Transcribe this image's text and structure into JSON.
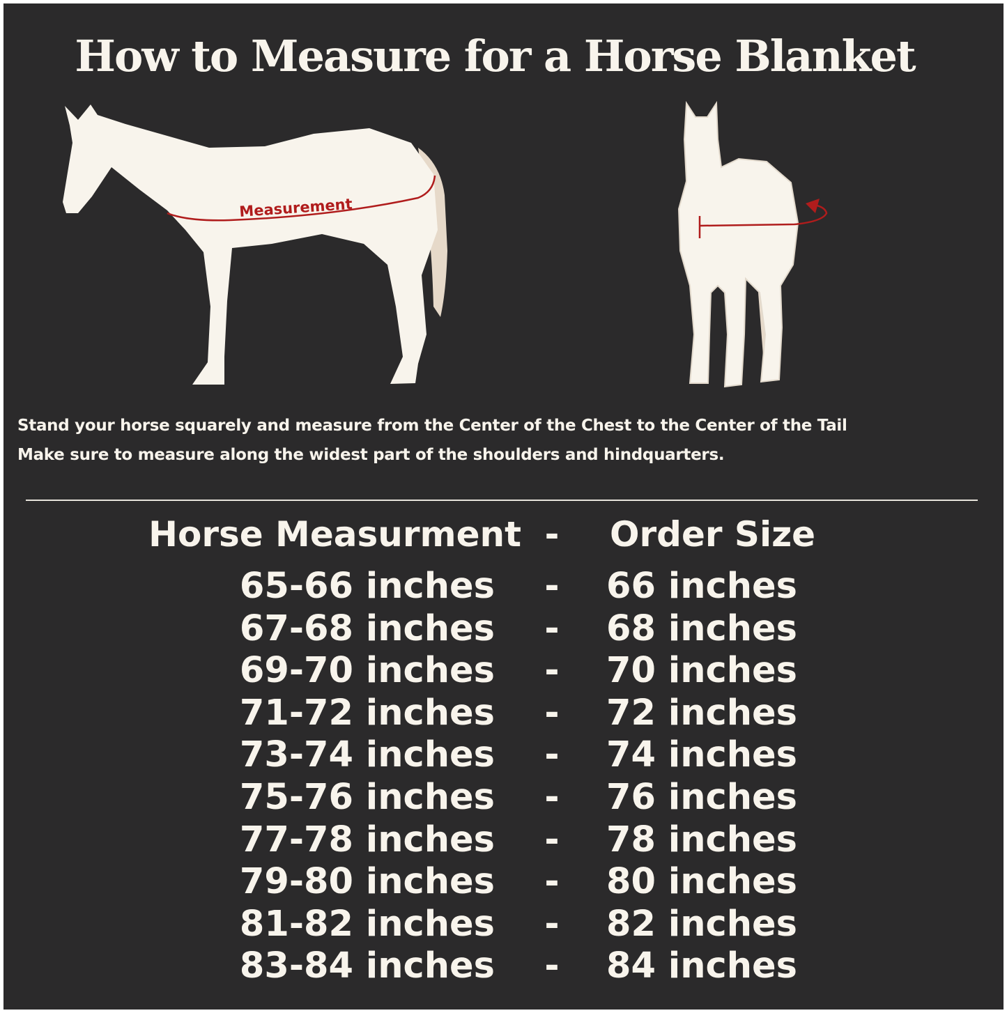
{
  "title": "How to Measure for a Horse Blanket",
  "illustration": {
    "measurement_label": "Measurement",
    "colors": {
      "background": "#2b2a2b",
      "horse": "#f8f4ec",
      "tail": "#e6d9c9",
      "measure_line": "#b01c1c"
    }
  },
  "instructions": [
    "Stand your horse squarely and measure from the Center of the Chest to the Center of the Tail",
    "Make sure to measure along the widest part of the shoulders and hindquarters."
  ],
  "table": {
    "header": {
      "left": "Horse Measurment",
      "sep": "-",
      "right": "Order Size"
    },
    "rows": [
      {
        "measurement": "65-66 inches",
        "sep": "-",
        "size": "66 inches"
      },
      {
        "measurement": "67-68 inches",
        "sep": "-",
        "size": "68 inches"
      },
      {
        "measurement": "69-70 inches",
        "sep": "-",
        "size": "70 inches"
      },
      {
        "measurement": "71-72 inches",
        "sep": "-",
        "size": "72 inches"
      },
      {
        "measurement": "73-74 inches",
        "sep": "-",
        "size": "74 inches"
      },
      {
        "measurement": "75-76 inches",
        "sep": "-",
        "size": "76 inches"
      },
      {
        "measurement": "77-78 inches",
        "sep": "-",
        "size": "78 inches"
      },
      {
        "measurement": "79-80 inches",
        "sep": "-",
        "size": "80 inches"
      },
      {
        "measurement": "81-82 inches",
        "sep": "-",
        "size": "82 inches"
      },
      {
        "measurement": "83-84 inches",
        "sep": "-",
        "size": "84 inches"
      }
    ]
  }
}
